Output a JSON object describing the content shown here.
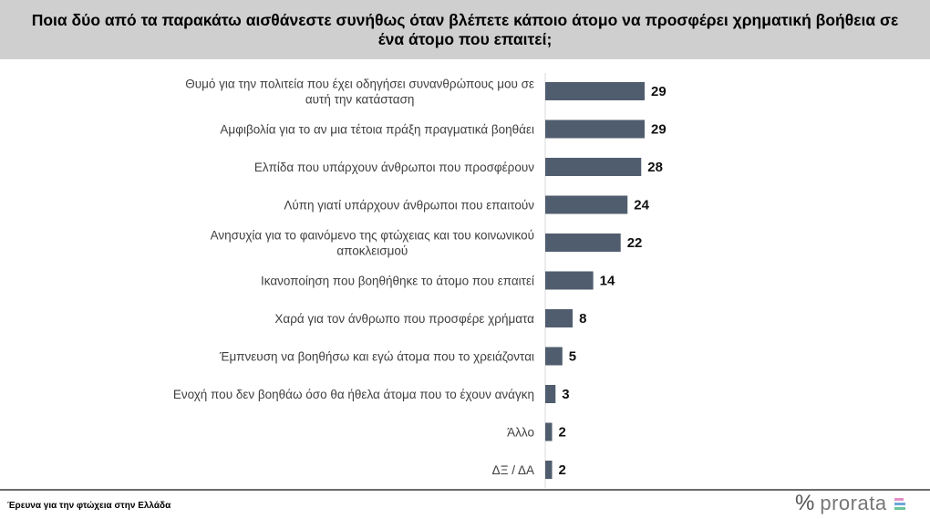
{
  "title": "Ποια δύο από τα παρακάτω αισθάνεστε συνήθως όταν βλέπετε κάποιο άτομο να προσφέρει χρηματική βοήθεια σε ένα άτομο που επαιτεί;",
  "footer": {
    "source": "Έρευνα για την φτώχεια  στην Ελλάδα",
    "logo_symbol": "%",
    "logo_text": "prorata"
  },
  "colors": {
    "bar": "#505d6e",
    "title_band": "#d0cfcf",
    "logo_bars": [
      "#e58ec4",
      "#6ea7d8",
      "#6cc59a"
    ]
  },
  "chart_data": {
    "type": "bar",
    "orientation": "horizontal",
    "categories": [
      [
        "Θυμό για την πολιτεία που έχει οδηγήσει συνανθρώπους μου σε",
        "αυτή την κατάσταση"
      ],
      [
        "Αμφιβολία για το αν μια τέτοια πράξη πραγματικά βοηθάει"
      ],
      [
        "Ελπίδα που υπάρχουν άνθρωποι που προσφέρουν"
      ],
      [
        "Λύπη γιατί υπάρχουν άνθρωποι που επαιτούν"
      ],
      [
        "Ανησυχία για το φαινόμενο της φτώχειας και του κοινωνικού",
        "αποκλεισμού"
      ],
      [
        "Ικανοποίηση που βοηθήθηκε το άτομο που επαιτεί"
      ],
      [
        "Χαρά για τον άνθρωπο που προσφέρε χρήματα"
      ],
      [
        "Έμπνευση να βοηθήσω και εγώ άτομα που το χρειάζονται"
      ],
      [
        "Ενοχή που δεν βοηθάω όσο θα ήθελα άτομα που το έχουν ανάγκη"
      ],
      [
        "Άλλο"
      ],
      [
        "ΔΞ / ΔΑ"
      ]
    ],
    "values": [
      29,
      29,
      28,
      24,
      22,
      14,
      8,
      5,
      3,
      2,
      2
    ],
    "data_labels": true,
    "grid": false
  }
}
